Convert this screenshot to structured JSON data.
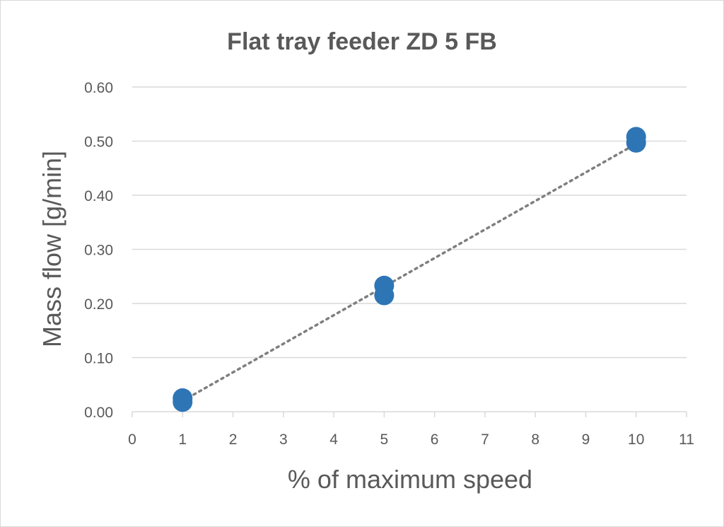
{
  "chart_data": {
    "type": "scatter",
    "title": "Flat tray feeder ZD 5 FB",
    "xlabel": "% of maximum speed",
    "ylabel": "Mass flow [g/min]",
    "xlim": [
      0,
      11
    ],
    "ylim": [
      0,
      0.6
    ],
    "x_ticks": [
      "0",
      "1",
      "2",
      "3",
      "4",
      "5",
      "6",
      "7",
      "8",
      "9",
      "10",
      "11"
    ],
    "y_ticks": [
      "0.00",
      "0.10",
      "0.20",
      "0.30",
      "0.40",
      "0.50",
      "0.60"
    ],
    "grid": "horizontal",
    "legend": "none",
    "series": [
      {
        "points": [
          {
            "x": 1,
            "y": 0.025
          },
          {
            "x": 1,
            "y": 0.018
          },
          {
            "x": 5,
            "y": 0.233
          },
          {
            "x": 5,
            "y": 0.215
          },
          {
            "x": 10,
            "y": 0.508
          },
          {
            "x": 10,
            "y": 0.497
          }
        ],
        "color": "#2e75b6"
      }
    ],
    "trendline": {
      "style": "dotted",
      "color": "#7f7f7f",
      "from": {
        "x": 1,
        "y": 0.02
      },
      "to": {
        "x": 10,
        "y": 0.495
      }
    }
  }
}
